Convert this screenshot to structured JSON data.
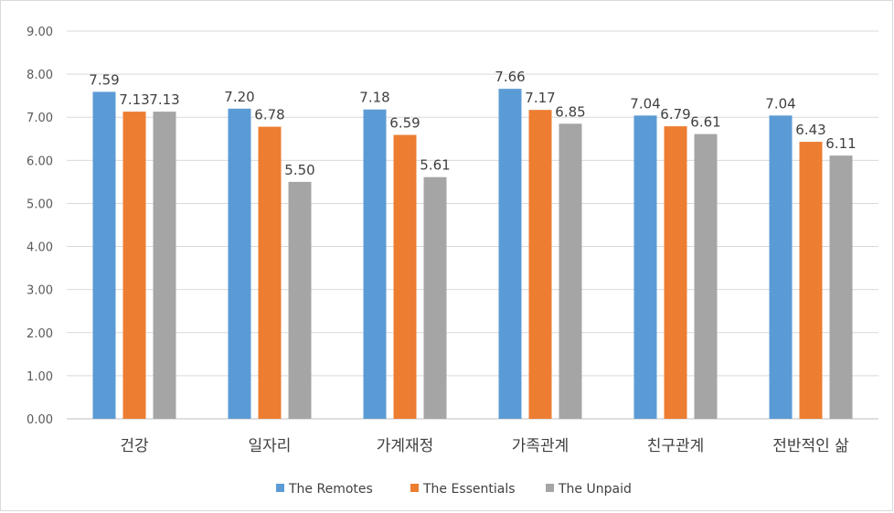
{
  "colors": {
    "remotes": "#5b9bd5",
    "essentials": "#ed7d31",
    "unpaid": "#a5a5a5",
    "grid": "#d9d9d9",
    "axis": "#bfbfbf"
  },
  "chart_data": {
    "type": "bar",
    "categories": [
      "건강",
      "일자리",
      "가계재정",
      "가족관계",
      "친구관계",
      "전반적인 삶"
    ],
    "series": [
      {
        "name": "The Remotes",
        "values": [
          7.59,
          7.2,
          7.18,
          7.66,
          7.04,
          7.04
        ],
        "labels": [
          "7.59",
          "7.20",
          "7.18",
          "7.66",
          "7.04",
          "7.04"
        ]
      },
      {
        "name": "The Essentials",
        "values": [
          7.13,
          6.78,
          6.59,
          7.17,
          6.79,
          6.43
        ],
        "labels": [
          "7.13",
          "6.78",
          "6.59",
          "7.17",
          "6.79",
          "6.43"
        ]
      },
      {
        "name": "The Unpaid",
        "values": [
          7.13,
          5.5,
          5.61,
          6.85,
          6.61,
          6.11
        ],
        "labels": [
          "7.13",
          "5.50",
          "5.61",
          "6.85",
          "6.61",
          "6.11"
        ]
      }
    ],
    "y_ticks": [
      "0.00",
      "1.00",
      "2.00",
      "3.00",
      "4.00",
      "5.00",
      "6.00",
      "7.00",
      "8.00",
      "9.00"
    ],
    "ylim": [
      0,
      9
    ],
    "grid": true,
    "legend_position": "bottom"
  }
}
